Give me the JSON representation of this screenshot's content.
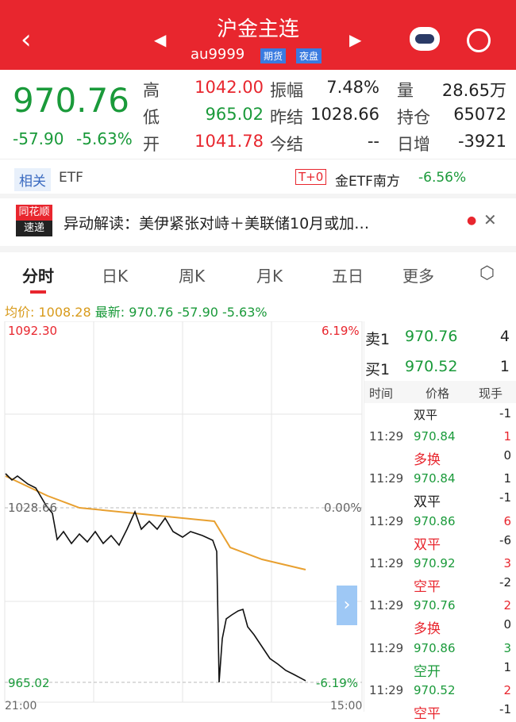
{
  "header": {
    "title": "沪金主连",
    "code": "au9999",
    "tags": [
      "期货",
      "夜盘"
    ]
  },
  "quote": {
    "price": "970.76",
    "change": "-57.90",
    "pct": "-5.63%",
    "stats": [
      {
        "label": "高",
        "value": "1042.00"
      },
      {
        "label": "低",
        "value": "965.02"
      },
      {
        "label": "开",
        "value": "1041.78"
      },
      {
        "label": "振幅",
        "value": "7.48%"
      },
      {
        "label": "昨结",
        "value": "1028.66"
      },
      {
        "label": "今结",
        "value": "--"
      },
      {
        "label": "量",
        "value": "28.65万"
      },
      {
        "label": "持仓",
        "value": "65072"
      },
      {
        "label": "日增",
        "value": "-3921"
      }
    ]
  },
  "etf": {
    "tag": "相关",
    "label": "ETF",
    "badge": "T+0",
    "name": "金ETF南方",
    "pct": "-6.56%"
  },
  "news": {
    "badge_top": "同花顺",
    "badge_bottom": "速递",
    "text": "异动解读：美伊紧张对峙＋美联储10月或加…"
  },
  "tabs": [
    "分时",
    "日K",
    "周K",
    "月K",
    "五日",
    "更多"
  ],
  "info": {
    "avg_label": "均价:",
    "avg": "1008.28",
    "last_label": "最新:",
    "last": "970.76",
    "change": "-57.90",
    "pct": "-5.63%"
  },
  "chart": {
    "top": "1092.30",
    "top_pct": "6.19%",
    "mid": "1028.66",
    "mid_pct": "0.00%",
    "bottom": "965.02",
    "bottom_pct": "-6.19%",
    "start": "21:00",
    "end": "15:00"
  },
  "book": {
    "sell": {
      "label": "卖1",
      "price": "970.76",
      "qty": "4"
    },
    "buy": {
      "label": "买1",
      "price": "970.52",
      "qty": "1"
    }
  },
  "trades": {
    "headers": [
      "时间",
      "价格",
      "现手"
    ],
    "first": {
      "kind": "双平",
      "hand": "-1"
    },
    "rows": [
      {
        "time": "11:29",
        "price": "970.84",
        "hand": "1",
        "kind": "多换",
        "hand2": "0",
        "hand_color": "#e8262e",
        "kind_color": "#e8262e"
      },
      {
        "time": "11:29",
        "price": "970.84",
        "hand": "1",
        "kind": "双平",
        "hand2": "-1",
        "hand_color": "#222222",
        "kind_color": "#222222"
      },
      {
        "time": "11:29",
        "price": "970.86",
        "hand": "6",
        "kind": "双平",
        "hand2": "-6",
        "hand_color": "#e8262e",
        "kind_color": "#e8262e"
      },
      {
        "time": "11:29",
        "price": "970.92",
        "hand": "3",
        "kind": "空平",
        "hand2": "-2",
        "hand_color": "#e8262e",
        "kind_color": "#e8262e"
      },
      {
        "time": "11:29",
        "price": "970.76",
        "hand": "2",
        "kind": "多换",
        "hand2": "0",
        "hand_color": "#e8262e",
        "kind_color": "#e8262e"
      },
      {
        "time": "11:29",
        "price": "970.86",
        "hand": "3",
        "kind": "空开",
        "hand2": "1",
        "hand_color": "#1a9a3a",
        "kind_color": "#1a9a3a"
      },
      {
        "time": "11:29",
        "price": "970.52",
        "hand": "2",
        "kind": "空平",
        "hand2": "-1",
        "hand_color": "#e8262e",
        "kind_color": "#e8262e"
      }
    ]
  }
}
